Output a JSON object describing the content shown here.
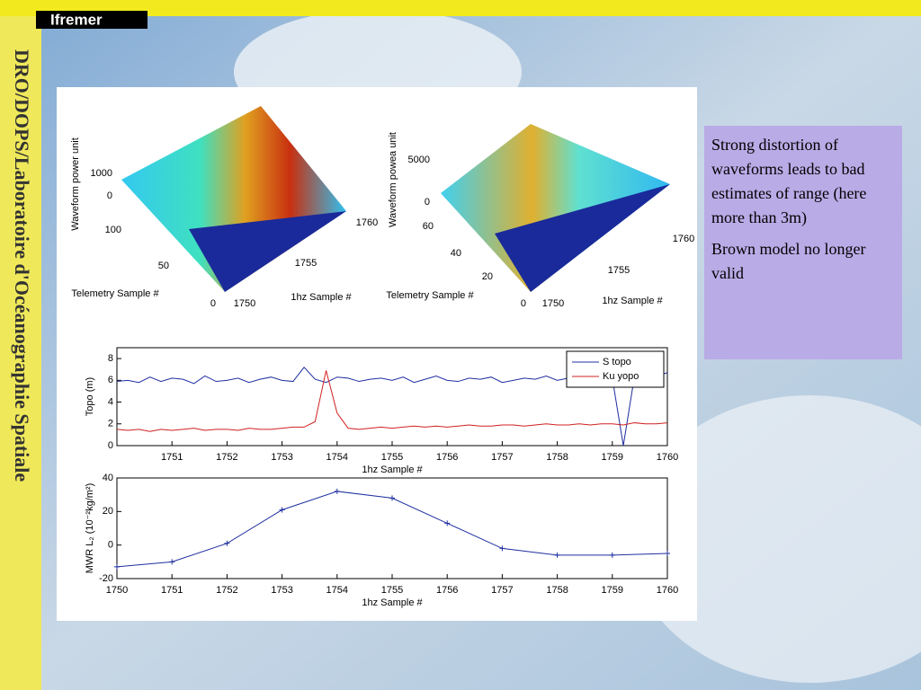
{
  "header": {
    "logo": "Ifremer",
    "sidebar": "DRO/DOPS/Laboratoire d'Océanographie Spatiale"
  },
  "note": {
    "paragraphs": [
      "Strong distortion of waveforms leads to bad estimates of range (here more than 3m)",
      "Brown model no longer valid"
    ]
  },
  "surface_plots": [
    {
      "zlabel": "Waveform power unit",
      "xlabel": "Telemetry Sample #",
      "ylabel": "1hz Sample #",
      "zticks": [
        0,
        1000
      ],
      "xticks": [
        0,
        50,
        100
      ],
      "yticks": [
        1750,
        1755,
        1760
      ]
    },
    {
      "zlabel": "Waveform powea unit",
      "xlabel": "Telemetry Sample #",
      "ylabel": "1hz Sample #",
      "zticks": [
        0,
        5000
      ],
      "xticks": [
        0,
        20,
        40,
        60
      ],
      "yticks": [
        1750,
        1755,
        1760
      ]
    }
  ],
  "chart_data": [
    {
      "type": "line",
      "xlabel": "1hz Sample #",
      "ylabel": "Topo (m)",
      "x": [
        1750.0,
        1750.2,
        1750.4,
        1750.6,
        1750.8,
        1751.0,
        1751.2,
        1751.4,
        1751.6,
        1751.8,
        1752.0,
        1752.2,
        1752.4,
        1752.6,
        1752.8,
        1753.0,
        1753.2,
        1753.4,
        1753.6,
        1753.8,
        1754.0,
        1754.2,
        1754.4,
        1754.6,
        1754.8,
        1755.0,
        1755.2,
        1755.4,
        1755.6,
        1755.8,
        1756.0,
        1756.2,
        1756.4,
        1756.6,
        1756.8,
        1757.0,
        1757.2,
        1757.4,
        1757.6,
        1757.8,
        1758.0,
        1758.2,
        1758.4,
        1758.6,
        1758.8,
        1759.0,
        1759.2,
        1759.4,
        1759.6,
        1759.8,
        1760.0
      ],
      "series": [
        {
          "name": "S topo",
          "color": "#1f2fa0",
          "values": [
            5.9,
            6,
            5.8,
            6.3,
            5.9,
            6.2,
            6.1,
            5.7,
            6.4,
            5.9,
            6,
            6.2,
            5.8,
            6.1,
            6.3,
            6,
            5.9,
            7.2,
            6.1,
            5.8,
            6.3,
            6.2,
            5.9,
            6.1,
            6.2,
            6,
            6.3,
            5.8,
            6.1,
            6.4,
            6,
            5.9,
            6.2,
            6.1,
            6.3,
            5.8,
            6,
            6.2,
            6.1,
            6.4,
            6,
            6.2,
            6.3,
            6.1,
            6.5,
            6.2,
            0,
            6.3,
            6.6,
            6.4,
            6.7
          ]
        },
        {
          "name": "Ku yopo",
          "color": "#d02020",
          "values": [
            1.5,
            1.4,
            1.5,
            1.3,
            1.5,
            1.4,
            1.5,
            1.6,
            1.4,
            1.5,
            1.5,
            1.4,
            1.6,
            1.5,
            1.5,
            1.6,
            1.7,
            1.7,
            2.2,
            6.9,
            3.0,
            1.6,
            1.5,
            1.6,
            1.7,
            1.6,
            1.7,
            1.8,
            1.7,
            1.8,
            1.7,
            1.8,
            1.9,
            1.8,
            1.8,
            1.9,
            1.9,
            1.8,
            1.9,
            2.0,
            1.9,
            1.9,
            2.0,
            1.9,
            2.0,
            2.0,
            1.9,
            2.1,
            2.0,
            2.0,
            2.1
          ]
        }
      ],
      "xlim": [
        1750,
        1760
      ],
      "xticks": [
        1751,
        1752,
        1753,
        1754,
        1755,
        1756,
        1757,
        1758,
        1759,
        1760
      ],
      "ylim": [
        0,
        9
      ],
      "yticks": [
        0,
        2,
        4,
        6,
        8
      ],
      "legend": "top-right"
    },
    {
      "type": "line",
      "xlabel": "1hz Sample #",
      "ylabel": "MWR L₂ (10⁻²kg/m²)",
      "x": [
        1750,
        1751,
        1752,
        1753,
        1754,
        1755,
        1756,
        1757,
        1758,
        1759,
        1760
      ],
      "series": [
        {
          "name": "MWR",
          "color": "#1f2fa0",
          "values": [
            -13,
            -10,
            1,
            21,
            32,
            28,
            13,
            -2,
            -6,
            -6,
            -5
          ]
        }
      ],
      "xlim": [
        1750,
        1760
      ],
      "xticks": [
        1750,
        1751,
        1752,
        1753,
        1754,
        1755,
        1756,
        1757,
        1758,
        1759,
        1760
      ],
      "ylim": [
        -20,
        40
      ],
      "yticks": [
        -20,
        0,
        20,
        40
      ],
      "markers": "+"
    }
  ]
}
